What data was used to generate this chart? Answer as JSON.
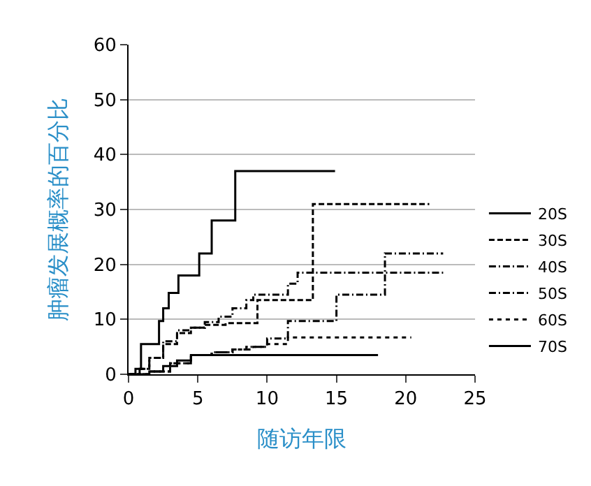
{
  "chart_data": {
    "type": "step",
    "xlabel": "随访年限",
    "ylabel": "肿瘤发展概率的百分比",
    "xlim": [
      0,
      25
    ],
    "xticks": [
      0,
      5,
      10,
      15,
      20,
      25
    ],
    "ylim": [
      0,
      60
    ],
    "yticks": [
      0,
      10,
      20,
      30,
      40,
      50,
      60
    ],
    "grid": "y",
    "legend": "right",
    "marker": "none",
    "series": [
      {
        "name": "20S",
        "color": "#000000",
        "line_style": "solid",
        "x": [
          0,
          0.5,
          0.9,
          2.2,
          2.5,
          2.9,
          3.6,
          5.1,
          6.0,
          7.7,
          14.9
        ],
        "values": [
          0,
          1,
          5.5,
          9.7,
          12,
          14.8,
          18,
          22,
          28,
          37,
          37
        ]
      },
      {
        "name": "30S",
        "color": "#000000",
        "line_style": "dashed",
        "x": [
          0,
          0.8,
          1.5,
          2.5,
          3.5,
          4.5,
          5.5,
          7,
          9.3,
          13.3,
          21.7
        ],
        "values": [
          0,
          1,
          3,
          5.5,
          7.5,
          8.5,
          9,
          9.3,
          13.5,
          31,
          31
        ]
      },
      {
        "name": "40S",
        "color": "#000000",
        "line_style": "dashdot",
        "x": [
          0,
          1.5,
          3,
          4.5,
          6,
          7.5,
          8.5,
          10,
          11.5,
          15,
          18.5,
          22.7
        ],
        "values": [
          0,
          0.5,
          2,
          3.5,
          4,
          4.5,
          5,
          6.5,
          9.7,
          14.5,
          22,
          22
        ]
      },
      {
        "name": "50S",
        "color": "#000000",
        "line_style": "dashdot",
        "x": [
          0,
          0.8,
          1.5,
          2.5,
          3.5,
          4.5,
          5.5,
          6.5,
          7.5,
          8.5,
          9,
          11.5,
          12.2,
          22.7
        ],
        "values": [
          0,
          1,
          3,
          6,
          8,
          8.5,
          9.5,
          10.5,
          12,
          13.5,
          14.5,
          16.5,
          18.5,
          18.5
        ]
      },
      {
        "name": "60S",
        "color": "#000000",
        "line_style": "dotted",
        "x": [
          0,
          1.5,
          3,
          4.5,
          6,
          7.5,
          9,
          10,
          11.5,
          20.4
        ],
        "values": [
          0,
          0.5,
          2,
          3.5,
          4,
          4.5,
          5,
          5.5,
          6.7,
          6.7
        ]
      },
      {
        "name": "70S",
        "color": "#000000",
        "line_style": "solid",
        "x": [
          0,
          1.5,
          2.5,
          3.5,
          4.5,
          18
        ],
        "values": [
          0,
          0.5,
          1.5,
          2.5,
          3.5,
          3.5
        ]
      }
    ]
  }
}
